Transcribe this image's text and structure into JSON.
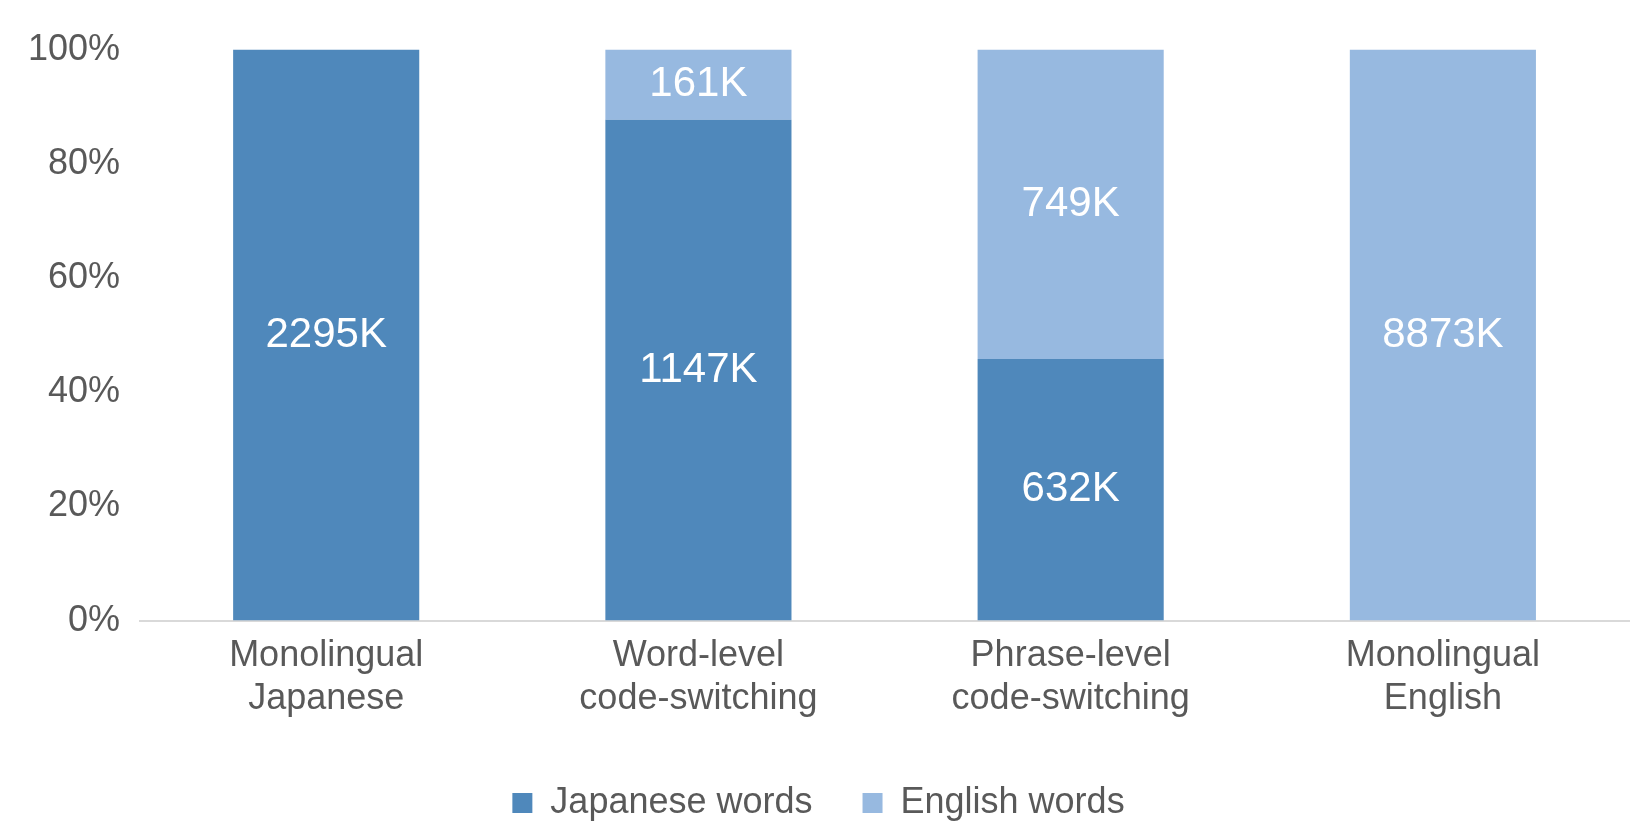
{
  "chart_data": {
    "type": "bar",
    "stacked": true,
    "categories": [
      "Monolingual Japanese",
      "Word-level code-switching",
      "Phrase-level code-switching",
      "Monolingual English"
    ],
    "series": [
      {
        "name": "Japanese words",
        "color": "#4f88bb",
        "values": [
          100,
          87.7,
          45.8,
          0
        ]
      },
      {
        "name": "English words",
        "color": "#97b9e0",
        "values": [
          0,
          12.3,
          54.2,
          100
        ]
      }
    ],
    "annotations": [
      "2295K",
      "1147K",
      "161K",
      "632K",
      "749K",
      "8873K"
    ],
    "ylim": [
      0,
      100
    ],
    "yticks": [
      {
        "value": 0,
        "label": "0%"
      },
      {
        "value": 20,
        "label": "20%"
      },
      {
        "value": 40,
        "label": "40%"
      },
      {
        "value": 60,
        "label": "60%"
      },
      {
        "value": 80,
        "label": "80%"
      },
      {
        "value": 100,
        "label": "100%"
      }
    ],
    "grid": false,
    "legend": "bottom"
  }
}
